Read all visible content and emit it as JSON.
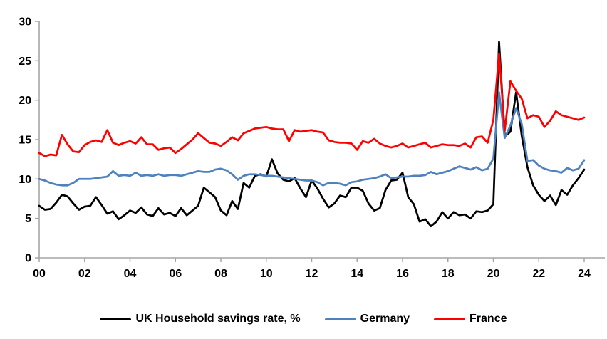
{
  "chart_data": {
    "type": "line",
    "title": "",
    "xlabel": "",
    "ylabel": "",
    "frequency": "quarterly",
    "x_start": "2000-Q1",
    "x_end": "2024-Q1",
    "x_tick_labels": [
      "00",
      "02",
      "04",
      "06",
      "08",
      "10",
      "12",
      "14",
      "16",
      "18",
      "20",
      "22",
      "24"
    ],
    "y_ticks": [
      0,
      5,
      10,
      15,
      20,
      25,
      30
    ],
    "ylim": [
      0,
      30
    ],
    "grid": false,
    "legend_position": "bottom",
    "axis_color": "#A6A6A6",
    "background_color": "#FFFFFF",
    "series": [
      {
        "name": "UK Household savings rate, %",
        "color": "#000000",
        "values": [
          6.6,
          6.1,
          6.2,
          7.0,
          8.0,
          7.8,
          6.9,
          6.1,
          6.5,
          6.6,
          7.7,
          6.7,
          5.6,
          5.9,
          4.9,
          5.4,
          6.0,
          5.7,
          6.4,
          5.5,
          5.3,
          6.3,
          5.5,
          5.7,
          5.3,
          6.3,
          5.4,
          6.0,
          6.6,
          8.9,
          8.3,
          7.7,
          6.0,
          5.4,
          7.2,
          6.2,
          9.5,
          8.9,
          10.4,
          10.6,
          10.3,
          12.5,
          10.7,
          9.9,
          9.7,
          10.1,
          8.8,
          7.7,
          9.8,
          8.8,
          7.5,
          6.4,
          6.9,
          7.9,
          7.7,
          8.9,
          8.9,
          8.5,
          6.9,
          6.0,
          6.3,
          8.6,
          9.8,
          9.9,
          10.8,
          7.7,
          6.8,
          4.6,
          4.9,
          4.0,
          4.6,
          5.8,
          5.0,
          5.8,
          5.4,
          5.5,
          5.0,
          5.9,
          5.8,
          6.0,
          6.8,
          27.4,
          15.4,
          16.0,
          21.0,
          15.5,
          11.5,
          9.2,
          8.0,
          7.2,
          7.9,
          6.7,
          8.6,
          8.0,
          9.2,
          10.1,
          11.2
        ]
      },
      {
        "name": "Germany",
        "color": "#4E81BD",
        "values": [
          10.0,
          9.8,
          9.5,
          9.3,
          9.2,
          9.2,
          9.5,
          10.0,
          10.0,
          10.0,
          10.1,
          10.2,
          10.3,
          11.0,
          10.4,
          10.5,
          10.4,
          10.8,
          10.4,
          10.5,
          10.4,
          10.6,
          10.4,
          10.5,
          10.5,
          10.4,
          10.6,
          10.8,
          11.0,
          10.9,
          10.9,
          11.2,
          11.3,
          11.1,
          10.6,
          9.9,
          10.4,
          10.6,
          10.6,
          10.5,
          10.4,
          10.4,
          10.3,
          10.2,
          10.1,
          10.0,
          9.9,
          9.8,
          9.8,
          9.6,
          9.2,
          9.5,
          9.5,
          9.4,
          9.2,
          9.6,
          9.7,
          9.9,
          10.0,
          10.1,
          10.3,
          10.6,
          10.1,
          10.2,
          10.3,
          10.3,
          10.4,
          10.4,
          10.5,
          10.9,
          10.6,
          10.8,
          11.0,
          11.3,
          11.6,
          11.4,
          11.2,
          11.5,
          11.1,
          11.3,
          12.6,
          21.0,
          15.2,
          16.8,
          19.0,
          17.0,
          12.3,
          12.4,
          11.7,
          11.3,
          11.1,
          11.0,
          10.8,
          11.4,
          11.1,
          11.3,
          12.4
        ]
      },
      {
        "name": "France",
        "color": "#FF0000",
        "values": [
          13.3,
          12.9,
          13.1,
          13.0,
          15.6,
          14.4,
          13.5,
          13.4,
          14.3,
          14.7,
          14.9,
          14.7,
          16.2,
          14.6,
          14.3,
          14.6,
          14.8,
          14.5,
          15.3,
          14.4,
          14.4,
          13.7,
          13.9,
          14.0,
          13.3,
          13.8,
          14.4,
          15.0,
          15.8,
          15.2,
          14.6,
          14.5,
          14.2,
          14.7,
          15.3,
          14.9,
          15.8,
          16.1,
          16.4,
          16.5,
          16.6,
          16.4,
          16.3,
          16.3,
          14.8,
          16.2,
          16.0,
          16.1,
          16.2,
          16.0,
          15.9,
          14.9,
          14.7,
          14.6,
          14.6,
          14.5,
          13.7,
          14.8,
          14.6,
          15.1,
          14.5,
          14.2,
          14.0,
          14.2,
          14.5,
          14.0,
          14.2,
          14.4,
          14.6,
          14.0,
          14.2,
          14.4,
          14.3,
          14.3,
          14.2,
          14.5,
          14.0,
          15.3,
          15.4,
          14.6,
          17.5,
          25.9,
          16.1,
          22.4,
          21.2,
          20.2,
          17.7,
          18.1,
          17.9,
          16.6,
          17.4,
          18.6,
          18.1,
          17.9,
          17.7,
          17.5,
          17.8
        ]
      }
    ]
  }
}
